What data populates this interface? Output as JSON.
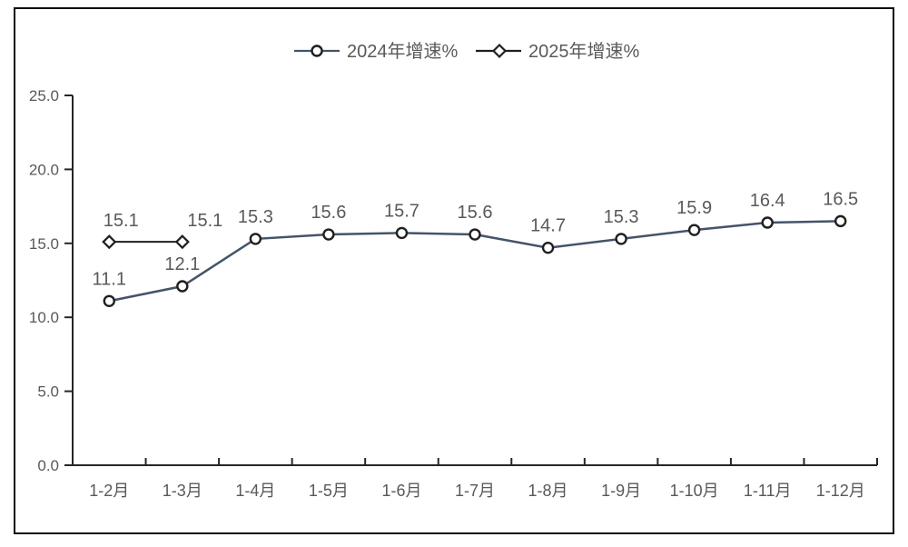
{
  "chart_data": {
    "type": "line",
    "title": "",
    "xlabel": "",
    "ylabel": "",
    "categories": [
      "1-2月",
      "1-3月",
      "1-4月",
      "1-5月",
      "1-6月",
      "1-7月",
      "1-8月",
      "1-9月",
      "1-10月",
      "1-11月",
      "1-12月"
    ],
    "series": [
      {
        "name": "2024年增速%",
        "marker": "circle",
        "line_color": "#44546A",
        "marker_stroke": "#1f1f1f",
        "values": [
          11.1,
          12.1,
          15.3,
          15.6,
          15.7,
          15.6,
          14.7,
          15.3,
          15.9,
          16.4,
          16.5
        ],
        "labels": [
          "11.1",
          "12.1",
          "15.3",
          "15.6",
          "15.7",
          "15.6",
          "14.7",
          "15.3",
          "15.9",
          "16.4",
          "16.5"
        ]
      },
      {
        "name": "2025年增速%",
        "marker": "diamond",
        "line_color": "#1f1f1f",
        "marker_stroke": "#1f1f1f",
        "values": [
          15.1,
          15.1
        ],
        "labels": [
          "15.1",
          "15.1"
        ],
        "label_dx": [
          13,
          25
        ]
      }
    ],
    "ylim": [
      0,
      25
    ],
    "ytick_step": 5,
    "ytick_labels": [
      "0.0",
      "5.0",
      "10.0",
      "15.0",
      "20.0",
      "25.0"
    ],
    "grid": false,
    "legend_position": "top-center",
    "data_labels": true
  },
  "style": {
    "text_color": "#595959",
    "axis_color": "#262626",
    "border_color": "#0d0d0d",
    "background": "#ffffff",
    "marker_fill": "#ffffff"
  }
}
